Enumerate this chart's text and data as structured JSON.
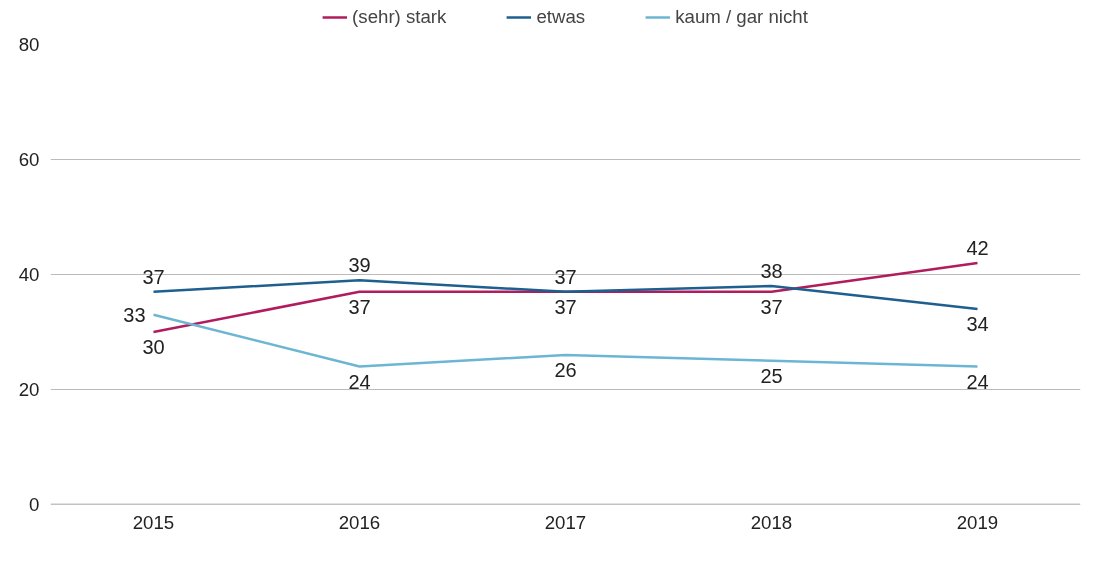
{
  "chart_data": {
    "type": "line",
    "categories": [
      "2015",
      "2016",
      "2017",
      "2018",
      "2019"
    ],
    "series": [
      {
        "name": "(sehr) stark",
        "color": "#b01c5e",
        "values": [
          30,
          37,
          37,
          37,
          42
        ]
      },
      {
        "name": "etwas",
        "color": "#1f5f8f",
        "values": [
          37,
          39,
          37,
          38,
          34
        ]
      },
      {
        "name": "kaum / gar nicht",
        "color": "#6cb6d3",
        "values": [
          33,
          24,
          26,
          25,
          24
        ]
      }
    ],
    "ylim": [
      0,
      80
    ],
    "yticks": [
      0,
      20,
      40,
      60,
      80
    ],
    "grid": "y",
    "legend": "top",
    "data_labels": true,
    "marker": "none",
    "line_style": "solid"
  }
}
